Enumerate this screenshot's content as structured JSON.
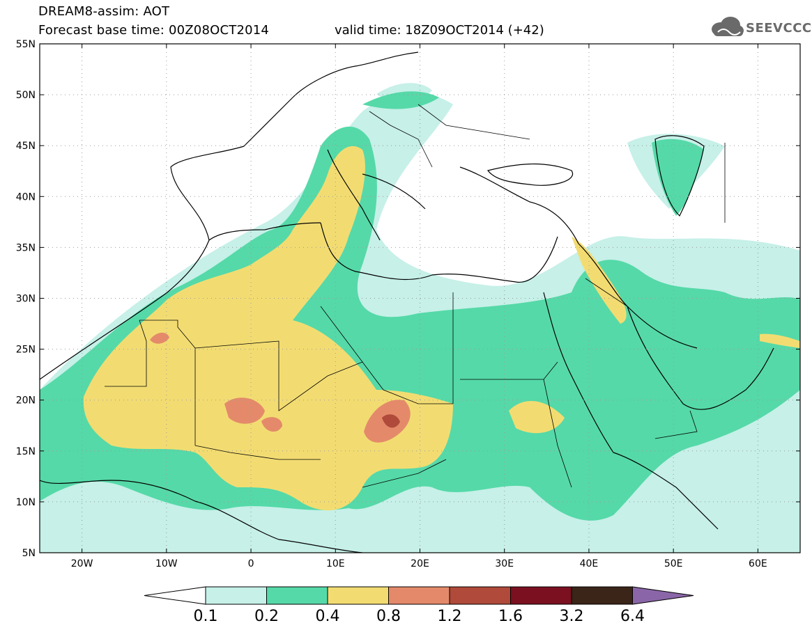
{
  "header": {
    "line1": "DREAM8-assim: AOT",
    "line2": "Forecast base time: 00Z08OCT2014",
    "valid": "valid time: 18Z09OCT2014 (+42)"
  },
  "logo": {
    "text": "SEEVCCC",
    "icon": "cloud-icon"
  },
  "axes": {
    "lat_labels": [
      "55N",
      "50N",
      "45N",
      "40N",
      "35N",
      "30N",
      "25N",
      "20N",
      "15N",
      "10N",
      "5N"
    ],
    "lon_labels": [
      "20W",
      "10W",
      "0",
      "10E",
      "20E",
      "30E",
      "40E",
      "50E",
      "60E"
    ],
    "lon_range": [
      -25,
      65
    ],
    "lat_range": [
      5,
      55
    ],
    "grid": "dotted"
  },
  "colorbar": {
    "labels": [
      "0.1",
      "0.2",
      "0.4",
      "0.8",
      "1.2",
      "1.6",
      "3.2",
      "6.4"
    ],
    "colors": [
      "#ffffff",
      "#c6f0e8",
      "#55d9a8",
      "#f2dc72",
      "#e48a6a",
      "#b04a3a",
      "#7a1020",
      "#3b2418",
      "#8a66a8"
    ]
  },
  "colors": {
    "c1": "#c6f0e8",
    "c2": "#55d9a8",
    "c3": "#f2dc72",
    "c4": "#e48a6a",
    "c5": "#b04a3a",
    "c6": "#7a1020"
  }
}
